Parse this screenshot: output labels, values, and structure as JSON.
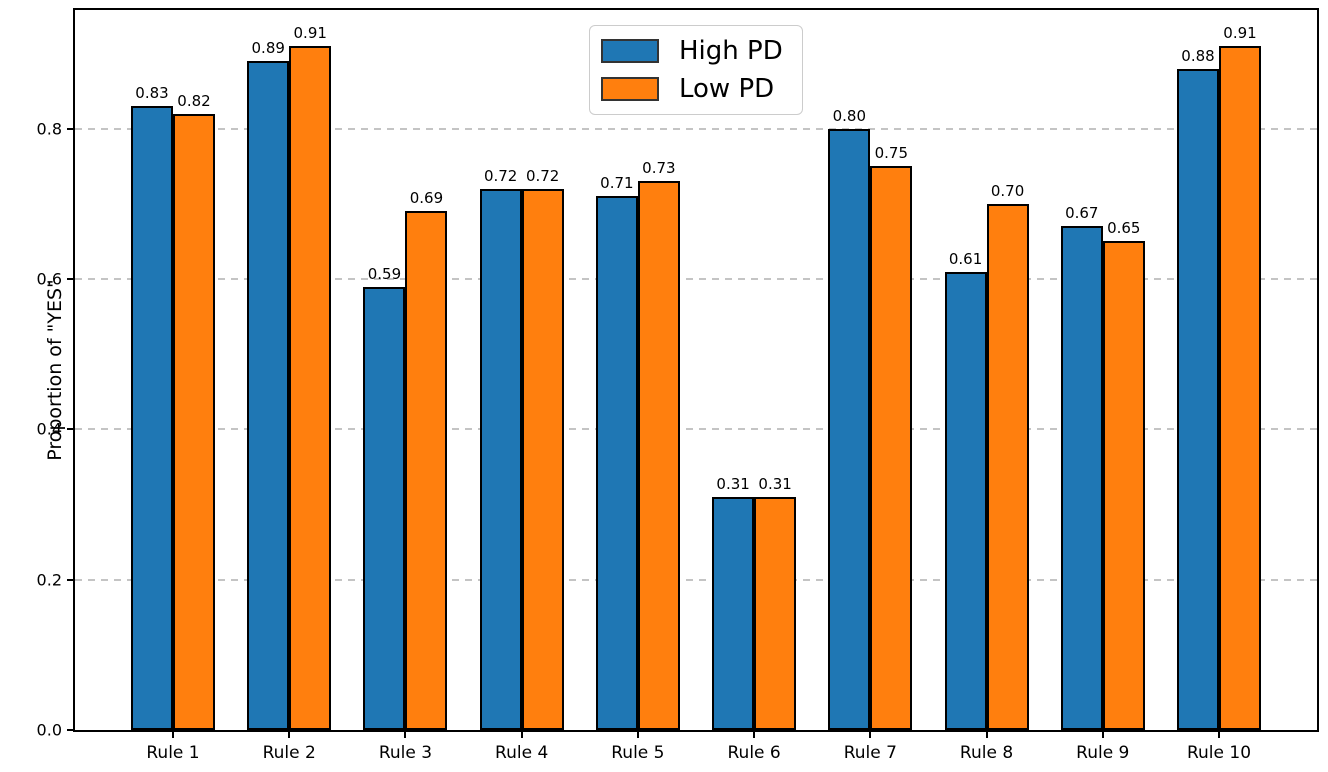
{
  "figure": {
    "title": "",
    "background_color": "#ffffff"
  },
  "chart_data": {
    "type": "bar",
    "title": "",
    "xlabel": "",
    "ylabel": "Proportion of \"YES\"",
    "categories": [
      "Rule 1",
      "Rule 2",
      "Rule 3",
      "Rule 4",
      "Rule 5",
      "Rule 6",
      "Rule 7",
      "Rule 8",
      "Rule 9",
      "Rule 10"
    ],
    "series": [
      {
        "name": "High PD",
        "color": "#1f77b4",
        "values": [
          0.83,
          0.89,
          0.59,
          0.72,
          0.71,
          0.31,
          0.8,
          0.61,
          0.67,
          0.88
        ]
      },
      {
        "name": "Low PD",
        "color": "#ff7f0e",
        "values": [
          0.82,
          0.91,
          0.69,
          0.72,
          0.73,
          0.31,
          0.75,
          0.7,
          0.65,
          0.91
        ]
      }
    ],
    "bar_edge_color": "#000000",
    "value_labels_shown": true,
    "value_label_decimals": 2,
    "ylim": [
      0,
      0.958
    ],
    "yticks": [
      0.0,
      0.2,
      0.4,
      0.6,
      0.8
    ],
    "grid": true,
    "grid_axis": "y",
    "grid_line_style": "dashed",
    "grid_color": "#c4c4c4",
    "legend": {
      "position": "upper center",
      "entries": [
        {
          "label": "High PD",
          "color": "#1f77b4"
        },
        {
          "label": "Low PD",
          "color": "#ff7f0e"
        }
      ]
    }
  }
}
